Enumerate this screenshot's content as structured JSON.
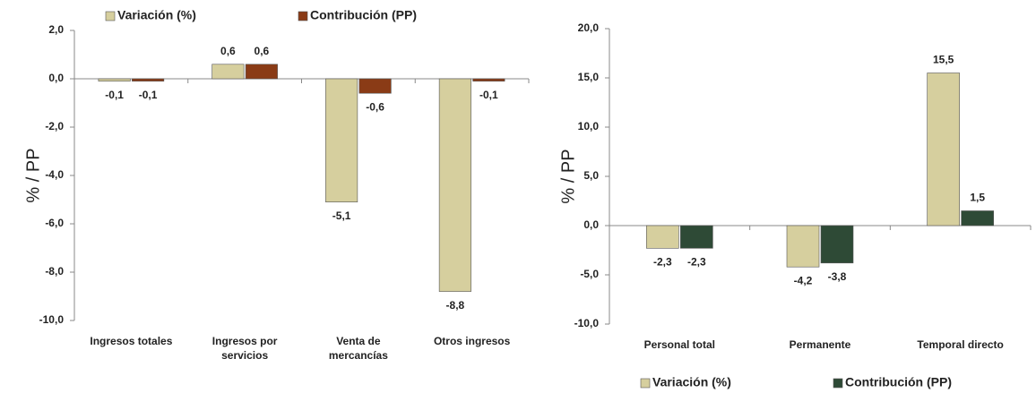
{
  "chart_data": [
    {
      "type": "bar",
      "y_label": "% / PP",
      "legend": "top",
      "categories": [
        "Ingresos totales",
        "Ingresos por servicios",
        "Venta de mercancías",
        "Otros ingresos"
      ],
      "series": [
        {
          "name": "Variación (%)",
          "color": "#d6cf9e",
          "values": [
            -0.1,
            0.6,
            -5.1,
            -8.8
          ],
          "value_labels": [
            "-0,1",
            "0,6",
            "-5,1",
            "-8,8"
          ]
        },
        {
          "name": "Contribución (PP)",
          "color": "#8a3b16",
          "values": [
            -0.1,
            0.6,
            -0.6,
            -0.1
          ],
          "value_labels": [
            "-0,1",
            "0,6",
            "-0,6",
            "-0,1"
          ]
        }
      ],
      "ylim": [
        -10,
        2
      ],
      "yticks": [
        {
          "value": -10,
          "label": "-10,0"
        },
        {
          "value": -8,
          "label": "-8,0"
        },
        {
          "value": -6,
          "label": "-6,0"
        },
        {
          "value": -4,
          "label": "-4,0"
        },
        {
          "value": -2,
          "label": "-2,0"
        },
        {
          "value": 0,
          "label": "0,0"
        },
        {
          "value": 2,
          "label": "2,0"
        }
      ]
    },
    {
      "type": "bar",
      "y_label": "% / PP",
      "legend": "bottom",
      "categories": [
        "Personal total",
        "Permanente",
        "Temporal directo"
      ],
      "series": [
        {
          "name": "Variación (%)",
          "color": "#d6cf9e",
          "values": [
            -2.3,
            -4.2,
            15.5
          ],
          "value_labels": [
            "-2,3",
            "-4,2",
            "15,5"
          ]
        },
        {
          "name": "Contribución (PP)",
          "color": "#2e4a36",
          "values": [
            -2.3,
            -3.8,
            1.5
          ],
          "value_labels": [
            "-2,3",
            "-3,8",
            "1,5"
          ]
        }
      ],
      "ylim": [
        -10,
        20
      ],
      "yticks": [
        {
          "value": -10,
          "label": "-10,0"
        },
        {
          "value": -5,
          "label": "-5,0"
        },
        {
          "value": 0,
          "label": "0,0"
        },
        {
          "value": 5,
          "label": "5,0"
        },
        {
          "value": 10,
          "label": "10,0"
        },
        {
          "value": 15,
          "label": "15,0"
        },
        {
          "value": 20,
          "label": "20,0"
        }
      ]
    }
  ]
}
